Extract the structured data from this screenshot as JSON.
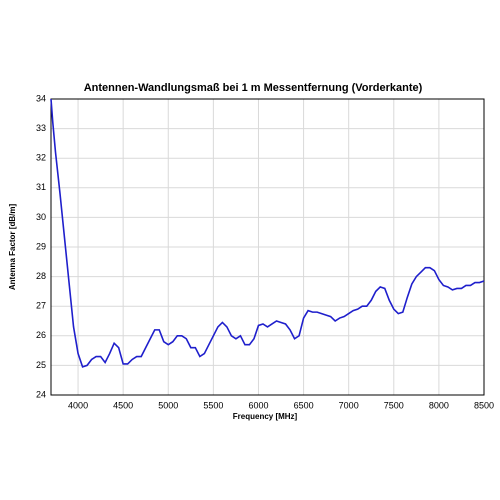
{
  "chart_data": {
    "type": "line",
    "title": "Antennen-Wandlungsmaß bei 1 m Messentfernung (Vorderkante)",
    "xlabel": "Frequency [MHz]",
    "ylabel": "Antenna Factor [dB/m]",
    "x": [
      3700,
      3720,
      3750,
      3800,
      3850,
      3900,
      3950,
      4000,
      4050,
      4100,
      4150,
      4200,
      4250,
      4300,
      4350,
      4400,
      4450,
      4500,
      4550,
      4600,
      4650,
      4700,
      4750,
      4800,
      4850,
      4900,
      4950,
      5000,
      5050,
      5100,
      5150,
      5200,
      5250,
      5300,
      5350,
      5400,
      5450,
      5500,
      5550,
      5600,
      5650,
      5700,
      5750,
      5800,
      5850,
      5900,
      5950,
      6000,
      6050,
      6100,
      6150,
      6200,
      6250,
      6300,
      6350,
      6400,
      6450,
      6500,
      6550,
      6600,
      6650,
      6700,
      6750,
      6800,
      6850,
      6900,
      6950,
      7000,
      7050,
      7100,
      7150,
      7200,
      7250,
      7300,
      7350,
      7400,
      7450,
      7500,
      7550,
      7600,
      7650,
      7700,
      7750,
      7800,
      7850,
      7900,
      7950,
      8000,
      8050,
      8100,
      8150,
      8200,
      8250,
      8300,
      8350,
      8400,
      8450,
      8500
    ],
    "series": [
      {
        "name": "Antenna Factor",
        "color": "#1f1fcc",
        "values": [
          34,
          33.2,
          32.2,
          30.8,
          29.3,
          27.8,
          26.3,
          25.4,
          24.95,
          25.0,
          25.2,
          25.3,
          25.3,
          25.1,
          25.4,
          25.75,
          25.6,
          25.05,
          25.05,
          25.2,
          25.3,
          25.3,
          25.6,
          25.9,
          26.2,
          26.2,
          25.8,
          25.7,
          25.8,
          26.0,
          26.0,
          25.9,
          25.6,
          25.6,
          25.3,
          25.4,
          25.7,
          26.0,
          26.3,
          26.45,
          26.3,
          26.0,
          25.9,
          26.0,
          25.7,
          25.7,
          25.9,
          26.35,
          26.4,
          26.3,
          26.4,
          26.5,
          26.45,
          26.4,
          26.2,
          25.9,
          26.0,
          26.6,
          26.85,
          26.8,
          26.8,
          26.75,
          26.7,
          26.65,
          26.5,
          26.6,
          26.65,
          26.75,
          26.85,
          26.9,
          27.0,
          27.0,
          27.2,
          27.5,
          27.65,
          27.6,
          27.2,
          26.9,
          26.75,
          26.8,
          27.3,
          27.75,
          28.0,
          28.15,
          28.3,
          28.3,
          28.2,
          27.9,
          27.7,
          27.65,
          27.55,
          27.6,
          27.6,
          27.7,
          27.7,
          27.8,
          27.8,
          27.85
        ]
      }
    ],
    "xlim": [
      3700,
      8500
    ],
    "xticks": [
      4000,
      4500,
      5000,
      5500,
      6000,
      6500,
      7000,
      7500,
      8000,
      8500
    ],
    "ylim": [
      24,
      34
    ],
    "yticks": [
      24,
      25,
      26,
      27,
      28,
      29,
      30,
      31,
      32,
      33,
      34
    ],
    "grid": true
  }
}
